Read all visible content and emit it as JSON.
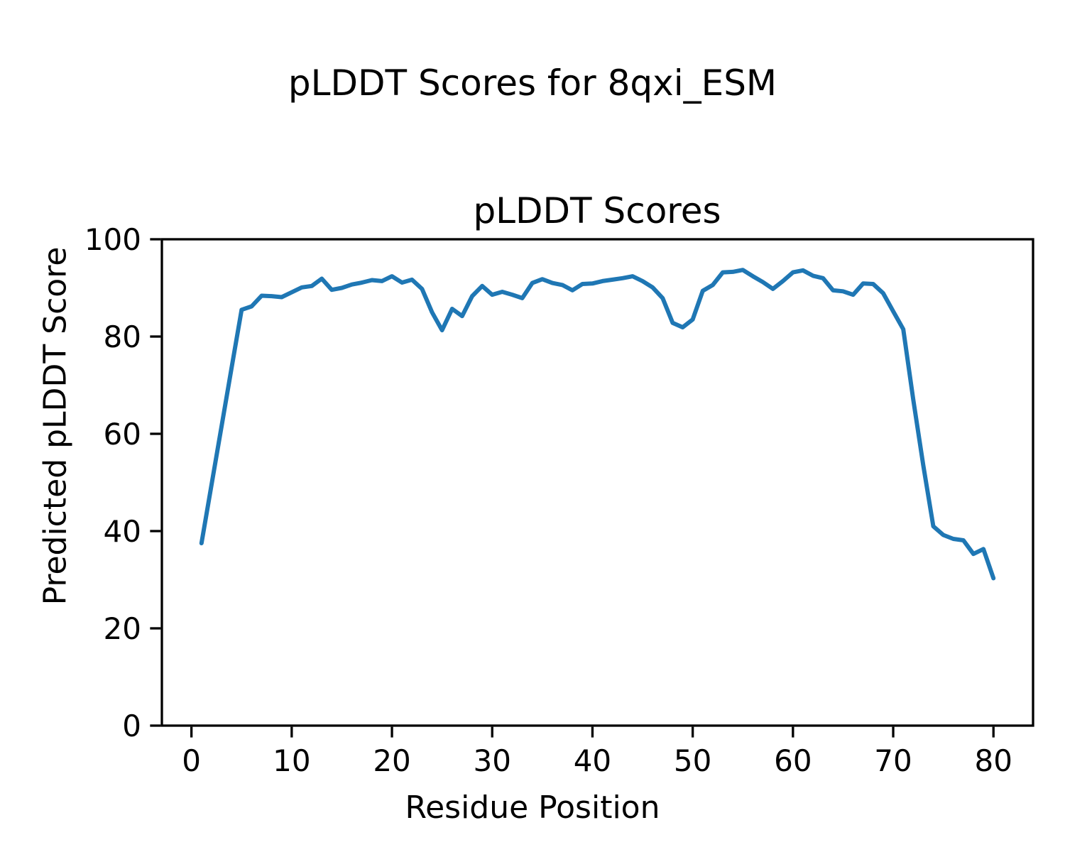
{
  "chart_data": {
    "type": "line",
    "suptitle": "pLDDT Scores for 8qxi_ESM",
    "axes_title": "pLDDT Scores",
    "xlabel": "Residue Position",
    "ylabel": "Predicted pLDDT Score",
    "xlim": [
      -2.95,
      83.95
    ],
    "ylim": [
      0,
      100
    ],
    "xticks": [
      0,
      10,
      20,
      30,
      40,
      50,
      60,
      70,
      80
    ],
    "yticks": [
      0,
      20,
      40,
      60,
      80,
      100
    ],
    "grid": false,
    "legend": "none",
    "line_color": "#1f77b4",
    "axis_color": "#000000",
    "series": [
      {
        "name": "pLDDT",
        "x": [
          1,
          2,
          3,
          4,
          5,
          6,
          7,
          8,
          9,
          10,
          11,
          12,
          13,
          14,
          15,
          16,
          17,
          18,
          19,
          20,
          21,
          22,
          23,
          24,
          25,
          26,
          27,
          28,
          29,
          30,
          31,
          32,
          33,
          34,
          35,
          36,
          37,
          38,
          39,
          40,
          41,
          42,
          43,
          44,
          45,
          46,
          47,
          48,
          49,
          50,
          51,
          52,
          53,
          54,
          55,
          56,
          57,
          58,
          59,
          60,
          61,
          62,
          63,
          64,
          65,
          66,
          67,
          68,
          69,
          70,
          71,
          72,
          73,
          74,
          75,
          76,
          77,
          78,
          79,
          80
        ],
        "y": [
          37.5,
          49.5,
          61.5,
          73.5,
          85.5,
          86.2,
          88.4,
          88.3,
          88.1,
          89.1,
          90.1,
          90.4,
          91.9,
          89.6,
          90.0,
          90.7,
          91.1,
          91.6,
          91.4,
          92.4,
          91.1,
          91.7,
          89.8,
          85.0,
          81.3,
          85.7,
          84.2,
          88.3,
          90.4,
          88.6,
          89.2,
          88.6,
          87.9,
          91.0,
          91.8,
          91.0,
          90.6,
          89.5,
          90.8,
          90.9,
          91.4,
          91.7,
          92.0,
          92.4,
          91.4,
          90.1,
          87.9,
          82.8,
          81.9,
          83.5,
          89.4,
          90.6,
          93.2,
          93.3,
          93.7,
          92.4,
          91.2,
          89.8,
          91.4,
          93.2,
          93.6,
          92.5,
          92.0,
          89.5,
          89.3,
          88.6,
          90.9,
          90.8,
          88.9,
          85.2,
          81.5,
          67.0,
          53.5,
          41.0,
          39.2,
          38.4,
          38.1,
          35.3,
          36.3,
          30.3
        ]
      }
    ]
  }
}
